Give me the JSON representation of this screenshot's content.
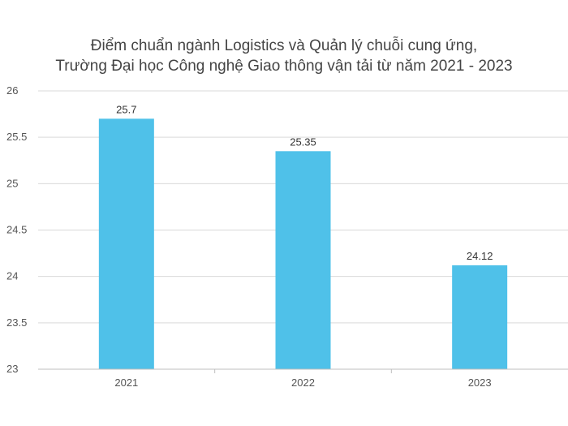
{
  "chart_data": {
    "type": "bar",
    "title_lines": [
      "Điểm chuẩn ngành Logistics và Quản lý chuỗi cung ứng,",
      "Trường Đại học Công nghệ Giao thông vận tải từ năm 2021 - 2023"
    ],
    "categories": [
      "2021",
      "2022",
      "2023"
    ],
    "values": [
      25.7,
      25.35,
      24.12
    ],
    "data_labels": [
      "25.7",
      "25.35",
      "24.12"
    ],
    "ylim": [
      23,
      26
    ],
    "yticks": [
      23,
      23.5,
      24,
      24.5,
      25,
      25.5,
      26
    ],
    "ytick_labels": [
      "23",
      "23.5",
      "24",
      "24.5",
      "25",
      "25.5",
      "26"
    ],
    "xlabel": "",
    "ylabel": "",
    "grid": true,
    "legend": "none",
    "colors": {
      "bar": "#4FC1E9",
      "grid": "#d9d9d9",
      "axis": "#bfbfbf"
    }
  }
}
